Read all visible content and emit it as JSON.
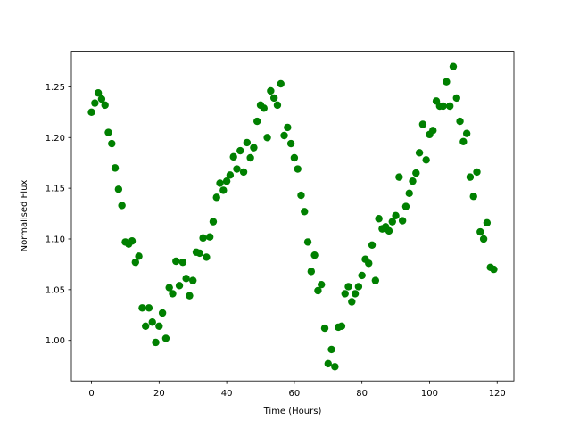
{
  "chart_data": {
    "type": "scatter",
    "xlabel": "Time (Hours)",
    "ylabel": "Normalised Flux",
    "series": [
      {
        "color": "#008000",
        "x": [
          0,
          1,
          2,
          3,
          4,
          5,
          6,
          7,
          8,
          9,
          10,
          11,
          12,
          13,
          14,
          15,
          16,
          17,
          18,
          19,
          20,
          21,
          22,
          23,
          24,
          25,
          26,
          27,
          28,
          29,
          30,
          31,
          32,
          33,
          34,
          35,
          36,
          37,
          38,
          39,
          40,
          41,
          42,
          43,
          44,
          45,
          46,
          47,
          48,
          49,
          50,
          51,
          52,
          53,
          54,
          55,
          56,
          57,
          58,
          59,
          60,
          61,
          62,
          63,
          64,
          65,
          66,
          67,
          68,
          69,
          70,
          71,
          72,
          73,
          74,
          75,
          76,
          77,
          78,
          79,
          80,
          81,
          82,
          83,
          84,
          85,
          86,
          87,
          88,
          89,
          90,
          91,
          92,
          93,
          94,
          95,
          96,
          97,
          98,
          99,
          100,
          101,
          102,
          103,
          104,
          105,
          106,
          107,
          108,
          109,
          110,
          111,
          112,
          113,
          114,
          115,
          116,
          117,
          118,
          119
        ],
        "values": [
          1.225,
          1.234,
          1.244,
          1.238,
          1.232,
          1.205,
          1.194,
          1.17,
          1.149,
          1.133,
          1.097,
          1.095,
          1.098,
          1.077,
          1.083,
          1.032,
          1.014,
          1.032,
          1.018,
          0.998,
          1.014,
          1.027,
          1.002,
          1.052,
          1.046,
          1.078,
          1.054,
          1.077,
          1.061,
          1.044,
          1.059,
          1.087,
          1.086,
          1.101,
          1.082,
          1.102,
          1.117,
          1.141,
          1.155,
          1.148,
          1.157,
          1.163,
          1.181,
          1.169,
          1.187,
          1.166,
          1.195,
          1.18,
          1.19,
          1.216,
          1.232,
          1.229,
          1.2,
          1.246,
          1.239,
          1.232,
          1.253,
          1.202,
          1.21,
          1.194,
          1.18,
          1.169,
          1.143,
          1.127,
          1.097,
          1.068,
          1.084,
          1.049,
          1.055,
          1.012,
          0.977,
          0.991,
          0.974,
          1.013,
          1.014,
          1.046,
          1.053,
          1.038,
          1.046,
          1.053,
          1.064,
          1.08,
          1.076,
          1.094,
          1.059,
          1.12,
          1.11,
          1.112,
          1.108,
          1.117,
          1.123,
          1.161,
          1.118,
          1.132,
          1.145,
          1.157,
          1.165,
          1.185,
          1.213,
          1.178,
          1.203,
          1.207,
          1.236,
          1.231,
          1.231,
          1.255,
          1.231,
          1.27,
          1.239,
          1.216,
          1.196,
          1.204,
          1.161,
          1.142,
          1.166,
          1.107,
          1.1,
          1.116,
          1.072,
          1.07
        ]
      }
    ],
    "xlim": [
      -5.95,
      124.95
    ],
    "ylim": [
      0.96,
      1.285
    ],
    "xticks": [
      0,
      20,
      40,
      60,
      80,
      100,
      120
    ],
    "yticks": [
      {
        "value": 1.0,
        "label": "1.00"
      },
      1.05,
      {
        "value": 1.1,
        "label": "1.10"
      },
      1.15,
      {
        "value": 1.2,
        "label": "1.20"
      },
      1.25
    ]
  }
}
